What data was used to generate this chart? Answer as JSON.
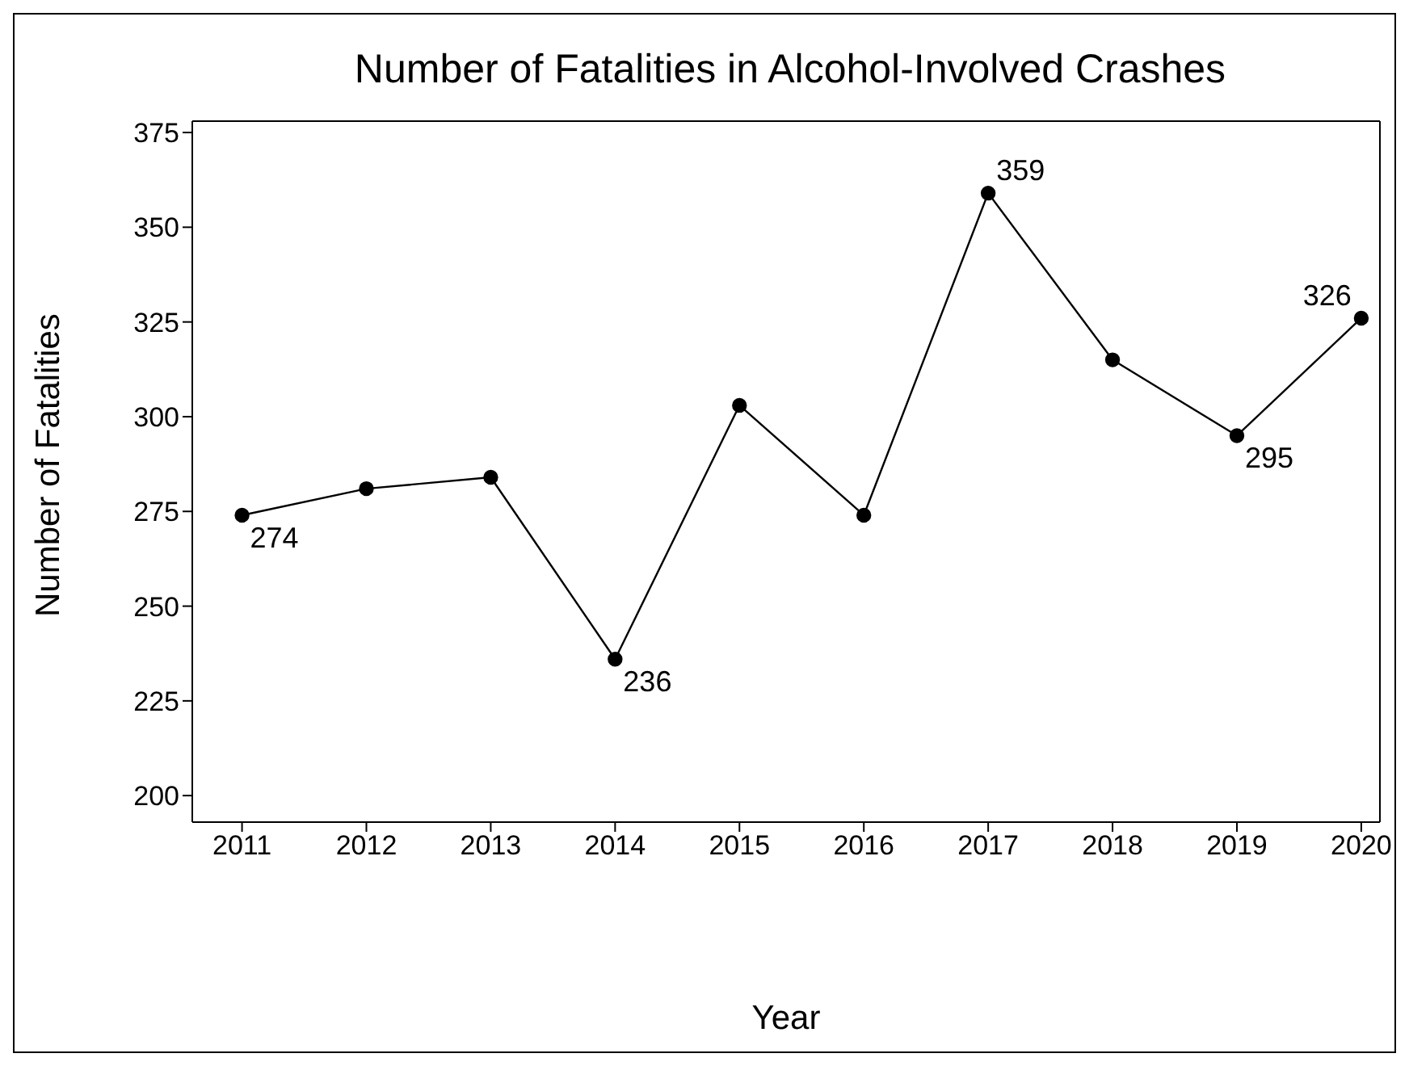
{
  "chart_data": {
    "type": "line",
    "title": "Number of Fatalities in Alcohol-Involved Crashes",
    "xlabel": "Year",
    "ylabel": "Number of Fatalities",
    "x": [
      2011,
      2012,
      2013,
      2014,
      2015,
      2016,
      2017,
      2018,
      2019,
      2020
    ],
    "series": [
      {
        "color": "#000000",
        "values": [
          274,
          281,
          284,
          236,
          303,
          274,
          359,
          315,
          295,
          326
        ],
        "value_labels": [
          "274",
          null,
          null,
          "236",
          null,
          null,
          "359",
          null,
          "295",
          "326"
        ]
      }
    ],
    "xlim": [
      2010.6,
      2020.15
    ],
    "xticks": [
      2011,
      2012,
      2013,
      2014,
      2015,
      2016,
      2017,
      2018,
      2019,
      2020
    ],
    "ylim": [
      193,
      378
    ],
    "yticks": [
      200,
      225,
      250,
      275,
      300,
      325,
      350,
      375
    ],
    "grid": false,
    "legend": false,
    "marker": "circle",
    "line_style": "solid"
  }
}
